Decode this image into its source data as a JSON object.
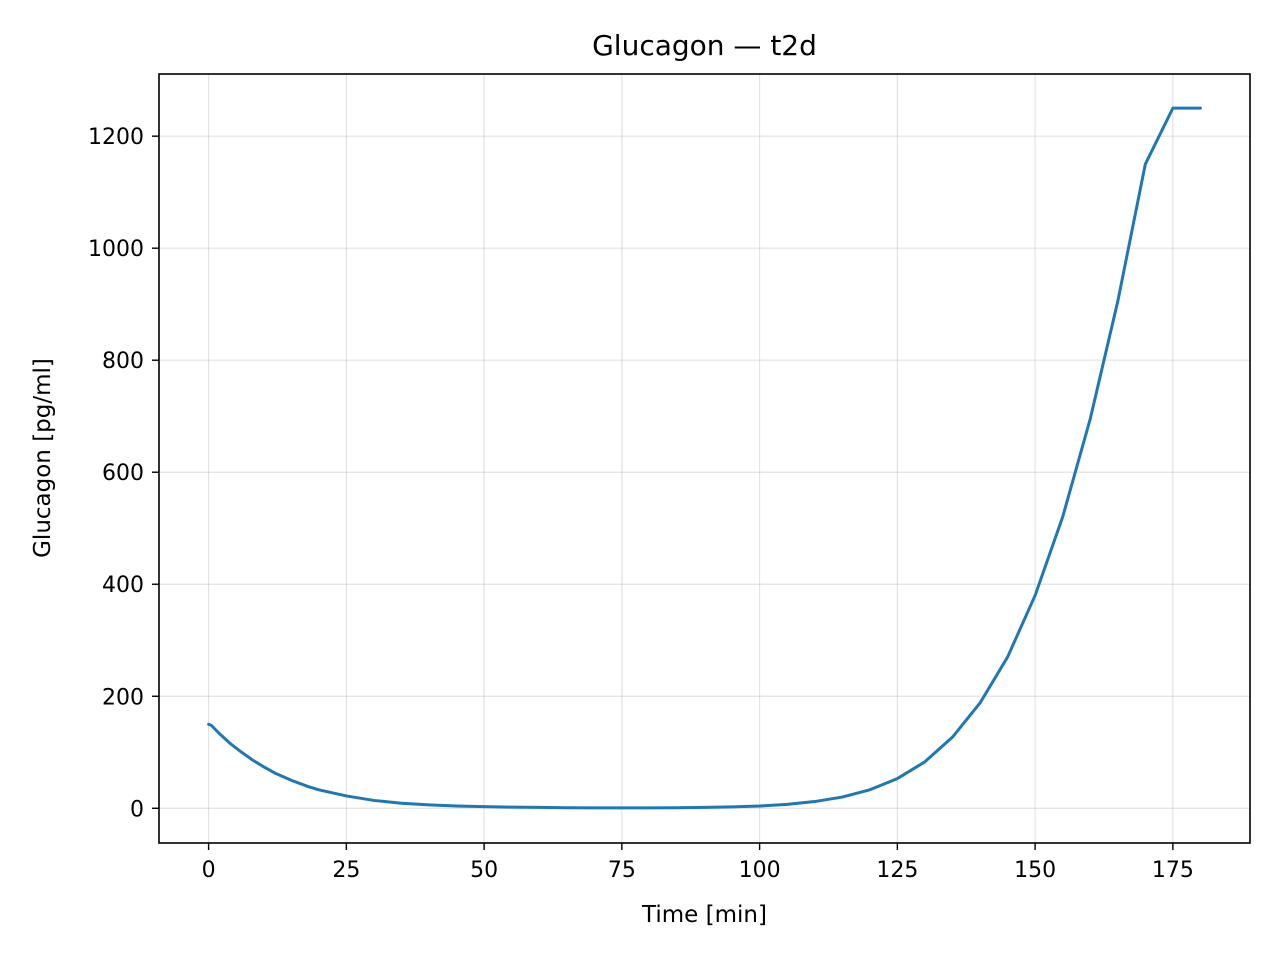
{
  "chart_data": {
    "type": "line",
    "title": "Glucagon — t2d",
    "xlabel": "Time [min]",
    "ylabel": "Glucagon [pg/ml]",
    "xlim": [
      -9,
      189
    ],
    "ylim": [
      -62,
      1311
    ],
    "xticks": [
      0,
      25,
      50,
      75,
      100,
      125,
      150,
      175
    ],
    "yticks": [
      0,
      200,
      400,
      600,
      800,
      1000,
      1200
    ],
    "grid": true,
    "series": [
      {
        "name": "Glucagon",
        "color": "#1f77b4",
        "x": [
          0,
          0.5,
          2,
          4,
          6,
          8,
          10,
          12,
          15,
          18,
          20,
          25,
          30,
          35,
          40,
          45,
          50,
          55,
          60,
          65,
          70,
          75,
          80,
          85,
          90,
          95,
          100,
          105,
          110,
          115,
          120,
          125,
          130,
          135,
          140,
          145,
          150,
          155,
          160,
          165,
          170,
          175,
          180
        ],
        "y": [
          150,
          148,
          133,
          115,
          100,
          86,
          74,
          63,
          50,
          39,
          33,
          22,
          14,
          9,
          6,
          4,
          3,
          2,
          1.5,
          1,
          0.8,
          0.7,
          0.8,
          1,
          1.5,
          2.5,
          4,
          7,
          12,
          20,
          33,
          53,
          83,
          127,
          188,
          270,
          380,
          520,
          695,
          905,
          1150,
          1250,
          1250
        ]
      }
    ]
  }
}
